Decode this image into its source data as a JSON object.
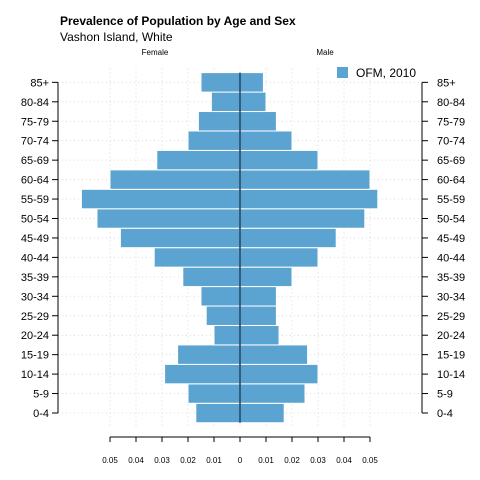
{
  "chart_data": {
    "type": "bar",
    "orientation": "horizontal-pyramid",
    "title": "Prevalence of Population by Age and Sex",
    "subtitle": "Vashon Island, White",
    "left_label": "Female",
    "right_label": "Male",
    "categories": [
      "0-4",
      "5-9",
      "10-14",
      "15-19",
      "20-24",
      "25-29",
      "30-34",
      "35-39",
      "40-44",
      "45-49",
      "50-54",
      "55-59",
      "60-64",
      "65-69",
      "70-74",
      "75-79",
      "80-84",
      "85+"
    ],
    "series": [
      {
        "name": "OFM, 2010",
        "side": "Female",
        "values": [
          0.017,
          0.02,
          0.029,
          0.024,
          0.01,
          0.013,
          0.015,
          0.022,
          0.033,
          0.046,
          0.055,
          0.061,
          0.05,
          0.032,
          0.02,
          0.016,
          0.011,
          0.015
        ]
      },
      {
        "name": "OFM, 2010",
        "side": "Male",
        "values": [
          0.017,
          0.025,
          0.03,
          0.026,
          0.015,
          0.014,
          0.014,
          0.02,
          0.03,
          0.037,
          0.048,
          0.053,
          0.05,
          0.03,
          0.02,
          0.014,
          0.01,
          0.009
        ]
      }
    ],
    "legend": [
      "OFM, 2010"
    ],
    "legend_position": "top-right",
    "xlim": [
      -0.05,
      0.05
    ],
    "x_ticks": [
      -0.05,
      -0.04,
      -0.03,
      -0.02,
      -0.01,
      0,
      0.01,
      0.02,
      0.03,
      0.04,
      0.05
    ],
    "x_tick_labels": [
      "0.05",
      "0.04",
      "0.03",
      "0.02",
      "0.01",
      "0",
      "0.01",
      "0.02",
      "0.03",
      "0.04",
      "0.05"
    ],
    "grid": true,
    "colors": {
      "bar": "#5BA3D0",
      "bar_stroke": "#ffffff",
      "center_line": "#2a4a6a",
      "grid": "#d9d9d9"
    }
  }
}
